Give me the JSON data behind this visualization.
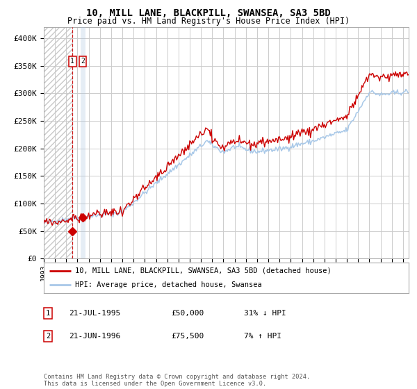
{
  "title": "10, MILL LANE, BLACKPILL, SWANSEA, SA3 5BD",
  "subtitle": "Price paid vs. HM Land Registry's House Price Index (HPI)",
  "hpi_color": "#a8c8e8",
  "price_color": "#cc0000",
  "marker_color": "#cc0000",
  "vline1_color": "#cc0000",
  "vline2_color": "#aac4e0",
  "sale1_date_label": "21-JUL-1995",
  "sale1_price": 50000,
  "sale1_pct": "31% ↓ HPI",
  "sale2_date_label": "21-JUN-1996",
  "sale2_price": 75500,
  "sale2_pct": "7% ↑ HPI",
  "sale1_x": 1995.55,
  "sale2_x": 1996.47,
  "ylabel_vals": [
    0,
    50000,
    100000,
    150000,
    200000,
    250000,
    300000,
    350000,
    400000
  ],
  "ylim": [
    0,
    420000
  ],
  "xlim_start": 1993.0,
  "xlim_end": 2025.5,
  "background_color": "#ffffff",
  "grid_color": "#cccccc",
  "legend_label1": "10, MILL LANE, BLACKPILL, SWANSEA, SA3 5BD (detached house)",
  "legend_label2": "HPI: Average price, detached house, Swansea",
  "footnote": "Contains HM Land Registry data © Crown copyright and database right 2024.\nThis data is licensed under the Open Government Licence v3.0."
}
